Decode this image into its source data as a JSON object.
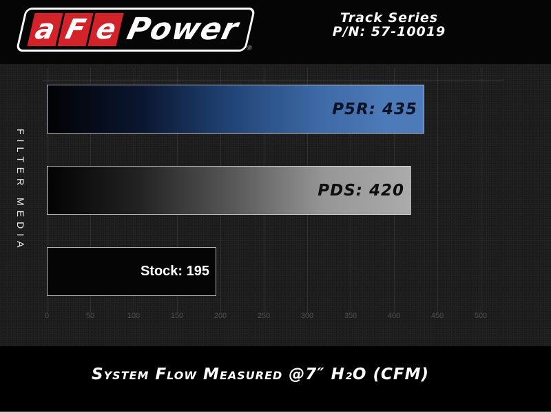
{
  "header": {
    "logo": {
      "segments": [
        "a",
        "F",
        "e"
      ],
      "wordmark": "Power",
      "registered_mark": "®",
      "brand_red": "#d2232a"
    },
    "series_name": "Track Series",
    "part_number": "P/N: 57-10019"
  },
  "chart_data": {
    "type": "bar",
    "orientation": "horizontal",
    "title": "",
    "categories": [
      "P5R",
      "PDS",
      "Stock"
    ],
    "values": [
      435,
      420,
      195
    ],
    "bar_labels": [
      "P5R: 435",
      "PDS: 420",
      "Stock: 195"
    ],
    "bar_colors": [
      "#4d7ab8",
      "#ababab",
      "#050505"
    ],
    "bar_fill_style": "gradient fading from black at left to bar color at right",
    "ylabel": "FILTER MEDIA",
    "xlabel": "System Flow Measured @7″ H₂O (CFM)",
    "xlim": [
      0,
      500
    ],
    "xticks": [
      0,
      50,
      100,
      150,
      200,
      250,
      300,
      350,
      400,
      450,
      500
    ],
    "grid": "faint vertical gridlines at each x tick",
    "legend": "none",
    "background": "#1c1c1c textured dark",
    "tick_label_color": "#515151"
  }
}
